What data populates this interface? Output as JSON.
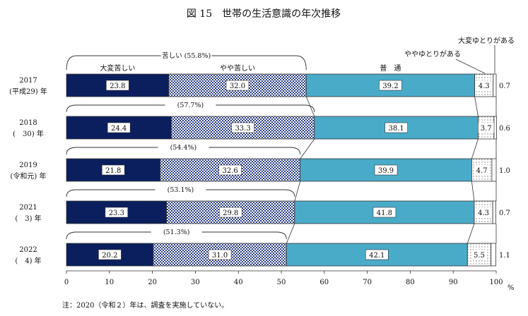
{
  "chart_data": {
    "type": "bar",
    "stacked": true,
    "orientation": "horizontal",
    "title": "図 15　世帯の生活意識の年次推移",
    "categories": [
      {
        "year": "2017",
        "era": "(平成29) 年"
      },
      {
        "year": "2018",
        "era": "(　30) 年"
      },
      {
        "year": "2019",
        "era": "(令和元) 年"
      },
      {
        "year": "2021",
        "era": "(　3) 年"
      },
      {
        "year": "2022",
        "era": "(　4) 年"
      }
    ],
    "series": [
      {
        "name": "大変苦しい",
        "values": [
          23.8,
          24.4,
          21.8,
          23.3,
          20.2
        ],
        "labels": [
          "23.8",
          "24.4",
          "21.8",
          "23.3",
          "20.2"
        ],
        "color": "#0b1f5e"
      },
      {
        "name": "やや苦しい",
        "values": [
          32.0,
          33.3,
          32.6,
          29.8,
          31.0
        ],
        "labels": [
          "32.0",
          "33.3",
          "32.6",
          "29.8",
          "31.0"
        ],
        "color": "#2b3f8a"
      },
      {
        "name": "普　通",
        "values": [
          39.2,
          38.1,
          39.9,
          41.8,
          42.1
        ],
        "labels": [
          "39.2",
          "38.1",
          "39.9",
          "41.8",
          "42.1"
        ],
        "color": "#4aabc9"
      },
      {
        "name": "ややゆとりがある",
        "values": [
          4.3,
          3.7,
          4.7,
          4.3,
          5.5
        ],
        "labels": [
          "4.3",
          "3.7",
          "4.7",
          "4.3",
          "5.5"
        ],
        "color": "#ffffff"
      },
      {
        "name": "大変ゆとりがある",
        "values": [
          0.7,
          0.6,
          1.0,
          0.7,
          1.1
        ],
        "labels": [
          "0.7",
          "0.6",
          "1.0",
          "0.7",
          "1.1"
        ],
        "color": "#ffffff"
      }
    ],
    "hardship_totals": [
      "苦しい (55.8%)",
      "(57.7%)",
      "(54.4%)",
      "(53.1%)",
      "(51.3%)"
    ],
    "x_ticks": [
      "0",
      "10",
      "20",
      "30",
      "40",
      "50",
      "60",
      "70",
      "80",
      "90",
      "100"
    ],
    "xlim": [
      0,
      100
    ],
    "x_unit": "%",
    "grid": false,
    "note": "注：2020（令和２）年は、調査を実施していない。"
  }
}
